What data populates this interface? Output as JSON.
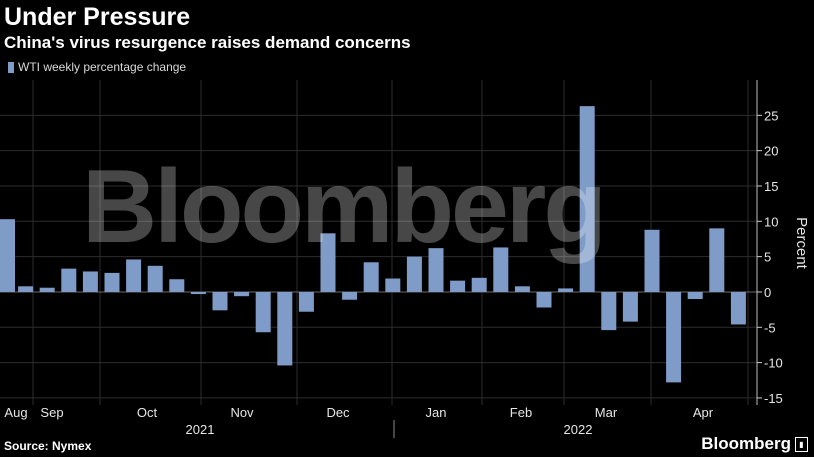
{
  "header": {
    "title": "Under Pressure",
    "subtitle": "China's virus resurgence raises demand concerns"
  },
  "footer": {
    "source": "Source: Nymex",
    "logo_text": "Bloomberg",
    "watermark": "Bloomberg"
  },
  "colors": {
    "background": "#000000",
    "bar": "#7f9cc9",
    "grid": "#2c2c2c",
    "axis_text": "#e6e6e6"
  },
  "chart_data": {
    "type": "bar",
    "legend": "WTI weekly percentage change",
    "ylabel": "Percent",
    "ylim": [
      -16,
      30
    ],
    "yticks": [
      -15,
      -10,
      -5,
      0,
      5,
      10,
      15,
      20,
      25
    ],
    "grid": true,
    "legend_position": "top-left",
    "month_labels": [
      "Aug",
      "Sep",
      "Oct",
      "Nov",
      "Dec",
      "Jan",
      "Feb",
      "Mar",
      "Apr"
    ],
    "year_labels": [
      "2021",
      "2022"
    ],
    "series": [
      {
        "values": [
          10.3,
          0.8,
          0.6,
          3.3,
          2.9,
          2.7,
          4.6,
          3.7,
          1.8,
          -0.3,
          -2.6,
          -0.6,
          -5.7,
          -10.4,
          -2.8,
          8.3,
          -1.1,
          4.2,
          1.9,
          5.0,
          6.2,
          1.6,
          2.0,
          6.3,
          0.8,
          -2.2,
          0.5,
          26.3,
          -5.4,
          -4.2,
          8.8,
          -12.8,
          -1.0,
          9.0,
          -4.6
        ]
      }
    ]
  }
}
